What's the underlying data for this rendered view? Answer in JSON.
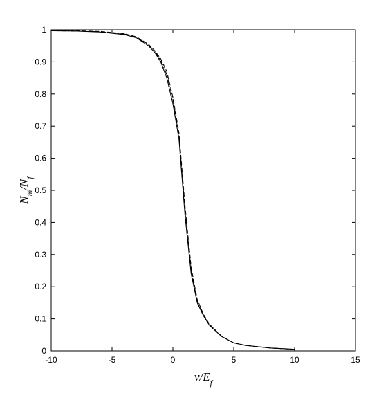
{
  "chart_data": {
    "type": "line",
    "xlabel": "ν/E_f",
    "ylabel": "N_m/N_f",
    "x": [
      -10,
      -8,
      -6,
      -4,
      -3,
      -2,
      -1.5,
      -1,
      -0.5,
      0,
      0.5,
      1,
      1.5,
      2,
      2.5,
      3,
      4,
      5,
      6,
      8,
      10
    ],
    "series": [
      {
        "color": "#000000",
        "linestyle": "solid",
        "values": [
          0.997,
          0.996,
          0.993,
          0.985,
          0.975,
          0.95,
          0.93,
          0.9,
          0.85,
          0.77,
          0.66,
          0.42,
          0.24,
          0.15,
          0.11,
          0.08,
          0.045,
          0.025,
          0.017,
          0.009,
          0.005
        ]
      },
      {
        "color": "#000000",
        "linestyle": "dashed",
        "values": [
          0.998,
          0.997,
          0.995,
          0.988,
          0.978,
          0.955,
          0.935,
          0.91,
          0.87,
          0.79,
          0.68,
          0.45,
          0.26,
          0.16,
          0.115,
          0.083,
          0.046,
          0.025,
          0.017,
          0.009,
          0.005
        ]
      },
      {
        "color": "#000000",
        "linestyle": "dashdot",
        "values": [
          0.997,
          0.996,
          0.994,
          0.987,
          0.977,
          0.953,
          0.933,
          0.905,
          0.86,
          0.785,
          0.67,
          0.44,
          0.25,
          0.155,
          0.112,
          0.08,
          0.045,
          0.025,
          0.017,
          0.009,
          0.005
        ]
      }
    ],
    "xlim": [
      -10,
      15
    ],
    "xticks": [
      -10,
      -5,
      0,
      5,
      10,
      15
    ],
    "ylim": [
      0,
      1
    ],
    "yticks": [
      0,
      0.1,
      0.2,
      0.3,
      0.4,
      0.5,
      0.6,
      0.7,
      0.8,
      0.9,
      1
    ],
    "grid": false
  }
}
